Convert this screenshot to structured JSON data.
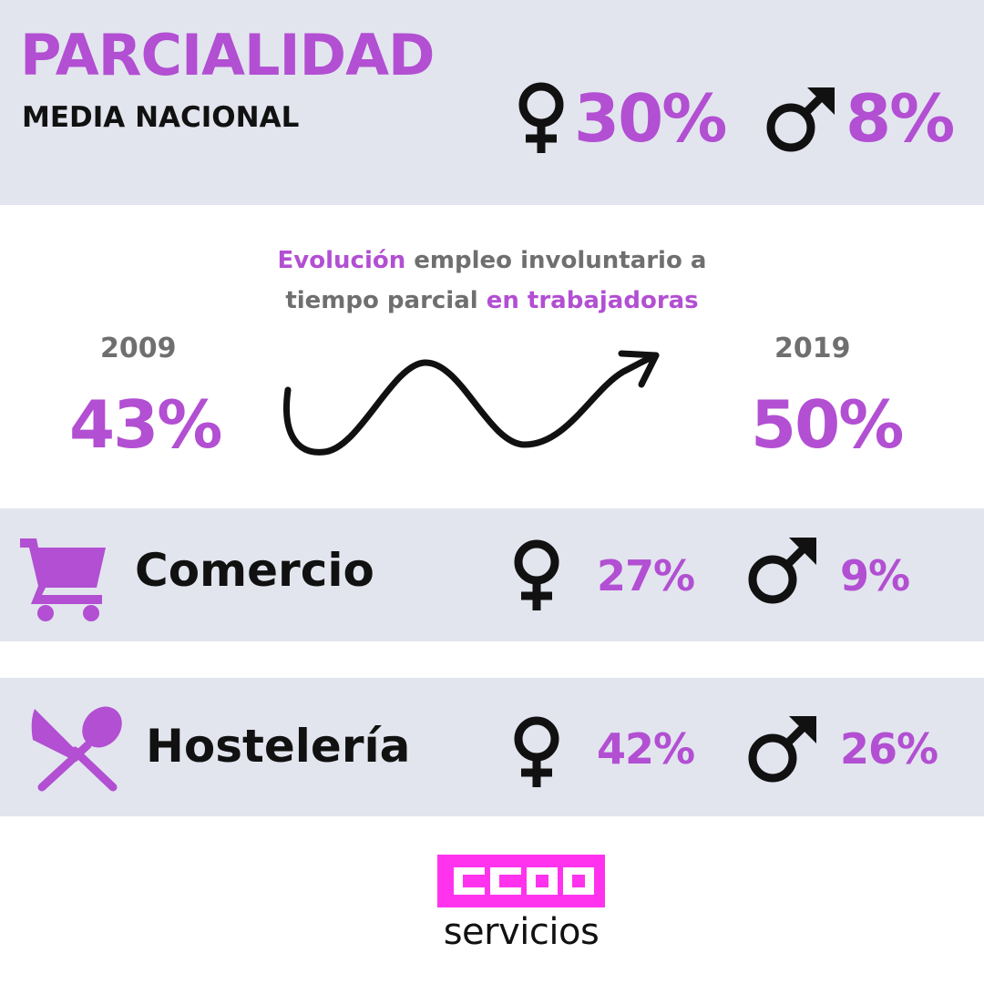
{
  "header": {
    "title": "PARCIALIDAD",
    "subtitle": "MEDIA NACIONAL",
    "female_pct": "30%",
    "male_pct": "8%"
  },
  "evolution": {
    "title_part1": "Evolución",
    "title_part2": " empleo involuntario a",
    "title_part3": "tiempo parcial ",
    "title_part4": "en trabajadoras",
    "year_start": "2009",
    "value_start": "43%",
    "year_end": "2019",
    "value_end": "50%"
  },
  "sectors": [
    {
      "name": "Comercio",
      "icon": "shopping-cart-icon",
      "female_pct": "27%",
      "male_pct": "9%"
    },
    {
      "name": "Hostelería",
      "icon": "knife-spoon-icon",
      "female_pct": "42%",
      "male_pct": "26%"
    }
  ],
  "logo": {
    "brand": "CCOO",
    "word": "servicios"
  },
  "colors": {
    "accent": "#b24fd2",
    "band": "#e2e5ee",
    "logo": "#ff33ee",
    "text_gray": "#6f6f6f",
    "text_dark": "#111111"
  }
}
